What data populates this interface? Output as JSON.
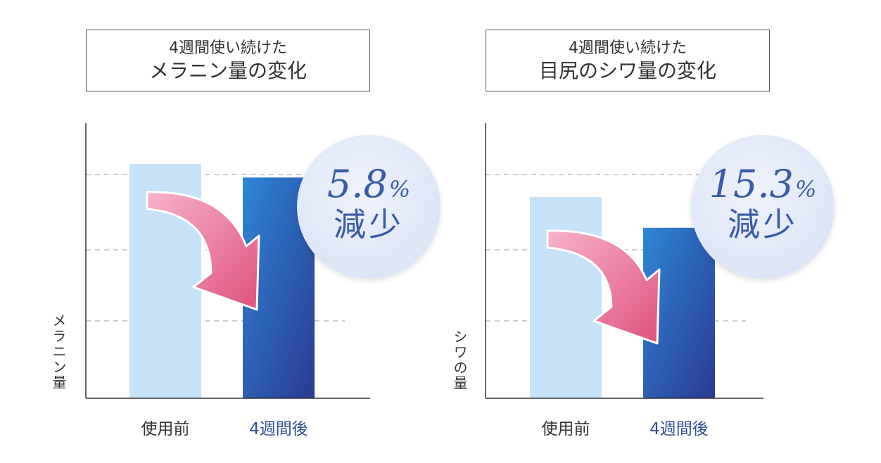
{
  "colors": {
    "before_bar": "#c6e3f9",
    "after_bar_top": "#2e86d6",
    "after_bar_bottom": "#2a3a92",
    "arrow_top": "#f18ab0",
    "arrow_bottom": "#e0527e",
    "badge_text": "#3b5ba8",
    "after_label": "#2f4f9a"
  },
  "chart_data": [
    {
      "type": "bar",
      "title": "4週間使い続けた\nメラニン量の変化",
      "title_line1": "4週間使い続けた",
      "title_line2": "メラニン量の変化",
      "ylabel": "メラニン量",
      "categories": [
        "使用前",
        "4週間後"
      ],
      "values": [
        100,
        94.2
      ],
      "ylim": [
        0,
        100
      ],
      "grid": "dashed",
      "badge": {
        "value": "5.8",
        "unit": "%",
        "text": "減少"
      },
      "annotation_icon": "down-curved-arrow-icon"
    },
    {
      "type": "bar",
      "title": "4週間使い続けた\n目尻のシワ量の変化",
      "title_line1": "4週間使い続けた",
      "title_line2": "目尻のシワ量の変化",
      "ylabel": "シワの量",
      "categories": [
        "使用前",
        "4週間後"
      ],
      "values": [
        100,
        84.7
      ],
      "ylim": [
        0,
        100
      ],
      "grid": "dashed",
      "badge": {
        "value": "15.3",
        "unit": "%",
        "text": "減少"
      },
      "annotation_icon": "down-curved-arrow-icon"
    }
  ]
}
